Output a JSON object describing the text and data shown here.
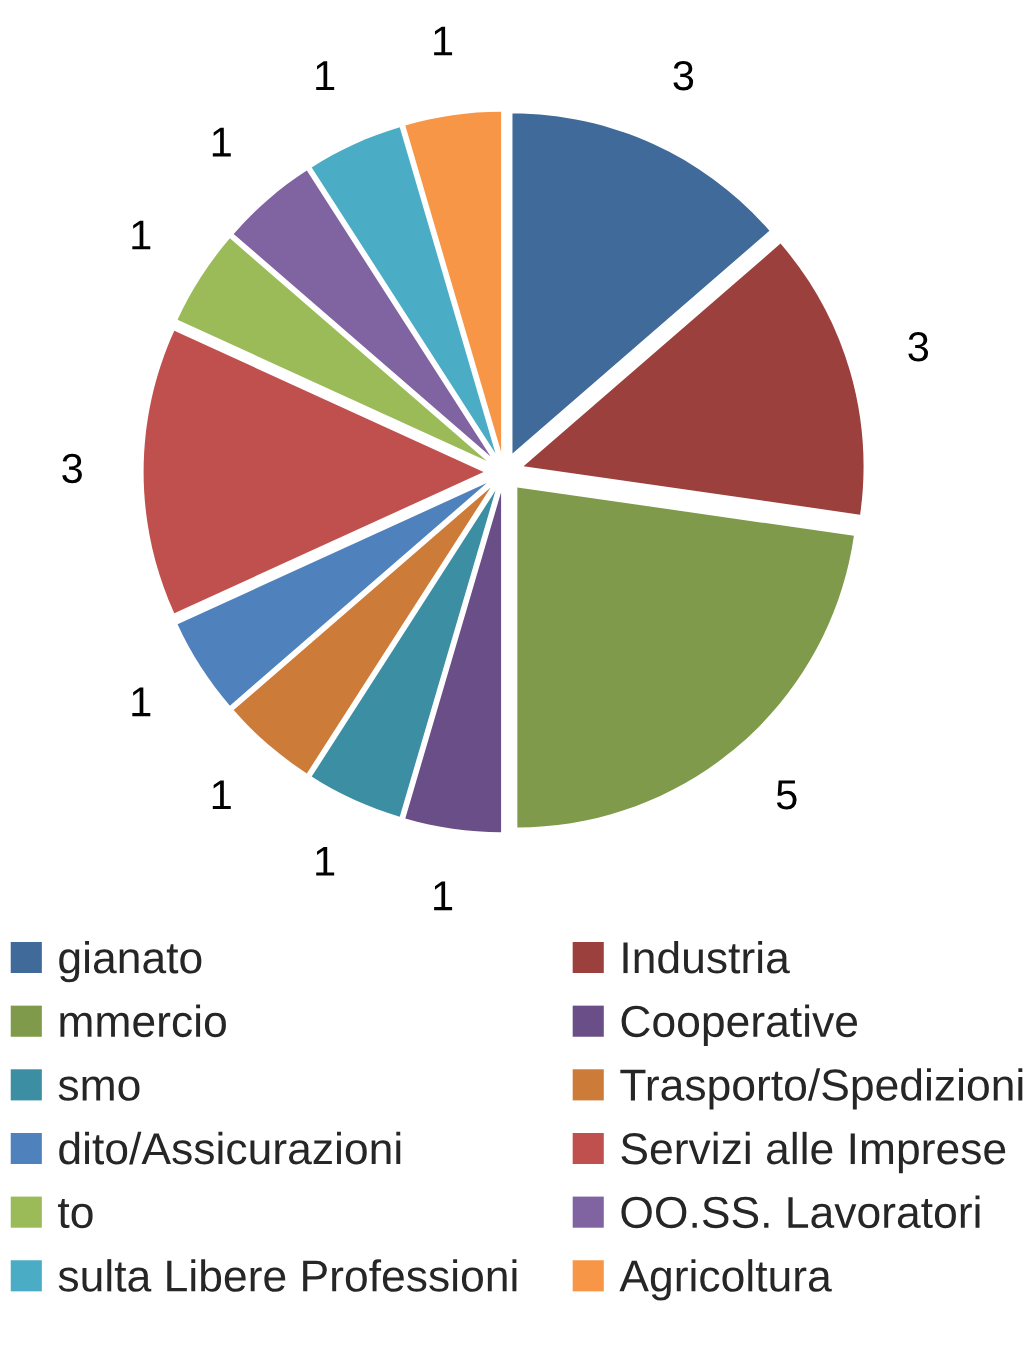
{
  "chart_data": {
    "type": "pie",
    "categories": [
      "gianato",
      "Industria",
      "mmercio",
      "Cooperative",
      "smo",
      "Trasporto/Spedizioni",
      "dito/Assicurazioni",
      "Servizi alle Imprese",
      "to",
      "OO.SS. Lavoratori",
      "sulta Libere Professioni",
      "Agricoltura"
    ],
    "values": [
      3,
      3,
      5,
      1,
      1,
      1,
      1,
      3,
      1,
      1,
      1,
      1
    ],
    "colors": [
      "#3f6a9a",
      "#9c403d",
      "#7f9a4a",
      "#694e87",
      "#3c8ea3",
      "#cc7b38",
      "#4f81bd",
      "#c0504d",
      "#9bbb59",
      "#8064a2",
      "#4bacc6",
      "#f79646"
    ],
    "data_labels": true,
    "legend": "bottom"
  }
}
